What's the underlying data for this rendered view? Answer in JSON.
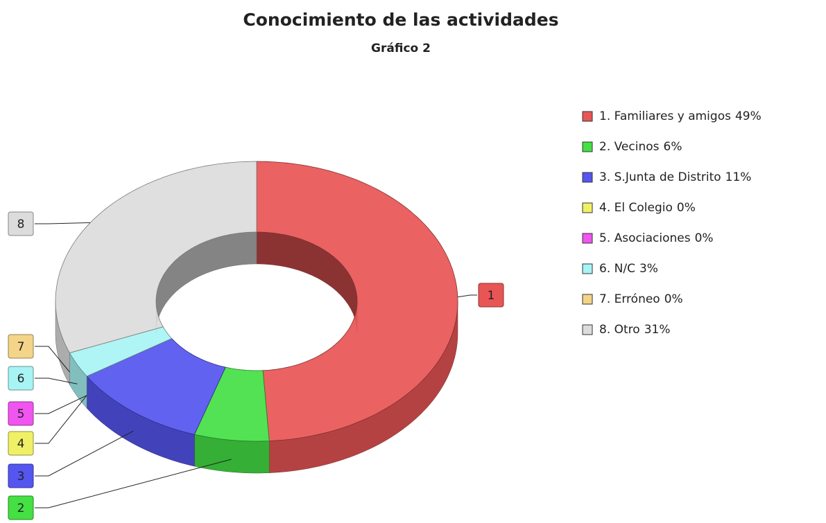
{
  "chart_data": {
    "type": "donut3d",
    "title": "Conocimiento de las actividades",
    "subtitle": "Gráfico 2",
    "categories": [
      "1. Familiares y amigos",
      "2. Vecinos",
      "3. S.Junta de Distrito",
      "4. El Colegio",
      "5. Asociaciones",
      "6. N/C",
      "7. Erróneo",
      "8. Otro"
    ],
    "values": [
      49,
      6,
      11,
      0,
      0,
      3,
      0,
      31
    ],
    "value_labels": [
      "49%",
      "6%",
      "11%",
      "0%",
      "0%",
      "3%",
      "0%",
      "31%"
    ],
    "callout_labels": [
      "1",
      "2",
      "3",
      "4",
      "5",
      "6",
      "7",
      "8"
    ],
    "colors": [
      "#e85555",
      "#44e044",
      "#5555f0",
      "#f0f066",
      "#f055f0",
      "#a8f4f4",
      "#f4d488",
      "#dcdcdc"
    ],
    "legend": "right"
  }
}
